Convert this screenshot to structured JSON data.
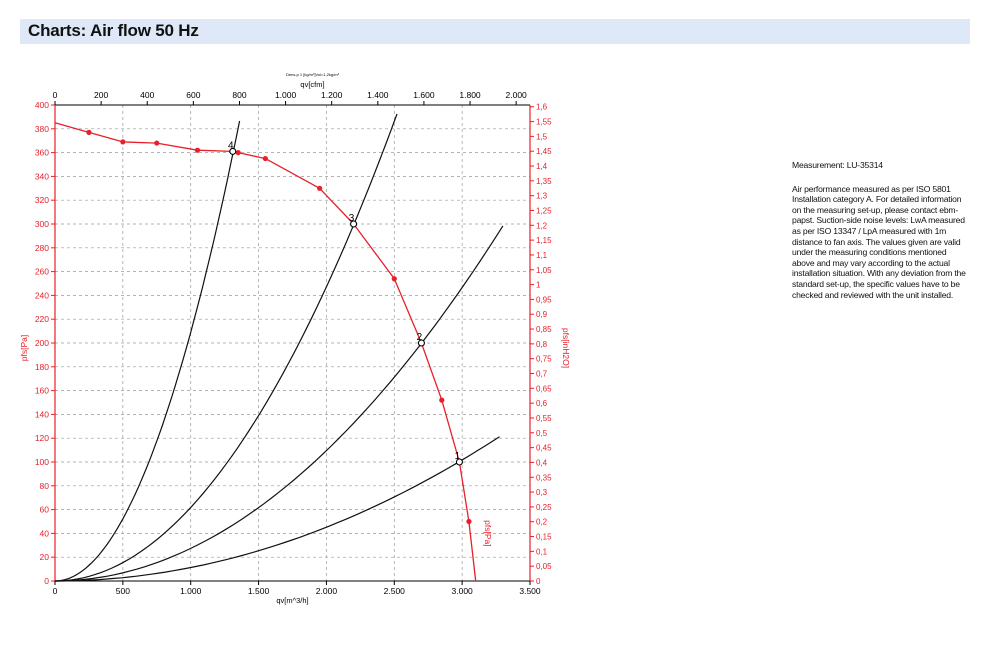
{
  "header": {
    "title": "Charts: Air flow 50 Hz"
  },
  "notes": {
    "measurement": "Measurement: LU-35314",
    "description": "Air performance measured as per ISO 5801 Installation category A. For detailed information on the measuring set-up, please contact ebm-papst. Suction-side noise levels: LwA measured as per ISO 13347 / LpA measured with 1m distance to fan axis. The values given are valid under the measuring conditions mentioned above and may vary according to the actual installation situation. With any deviation from the standard set-up, the specific values have to be checked and reviewed with the unit installed."
  },
  "colors": {
    "red": "#e8202a",
    "black": "#111111",
    "grid": "#9a9a9a",
    "header_bg": "#dfe8f7"
  },
  "chart_data": {
    "type": "line",
    "title": "",
    "subtitle": "Dens.ρ 1 [kg/m³]Vol=1,2kg/m³",
    "xlabel": "qv[m^3/h]",
    "xlabel_top": "qv[cfm]",
    "ylabel": "pfs[Pa]",
    "ylabel_right": "pfs[inH2O]",
    "curve_label": "pfs[Pa]",
    "xlim": [
      0,
      3500
    ],
    "ylim": [
      0,
      400
    ],
    "x_ticks": [
      0,
      500,
      1000,
      1500,
      2000,
      2500,
      3000,
      3500
    ],
    "x_tick_labels": [
      "0",
      "500",
      "1.000",
      "1.500",
      "2.000",
      "2.500",
      "3.000",
      "3.500"
    ],
    "x_top_ticks": [
      0,
      200,
      400,
      600,
      800,
      1000,
      1200,
      1400,
      1600,
      1800,
      2000
    ],
    "x_top_tick_labels": [
      "0",
      "200",
      "400",
      "600",
      "800",
      "1.000",
      "1.200",
      "1.400",
      "1.600",
      "1.800",
      "2.000"
    ],
    "y_ticks": [
      0,
      20,
      40,
      60,
      80,
      100,
      120,
      140,
      160,
      180,
      200,
      220,
      240,
      260,
      280,
      300,
      320,
      340,
      360,
      380,
      400
    ],
    "y_right_ticks": [
      0,
      0.05,
      0.1,
      0.15,
      0.2,
      0.25,
      0.3,
      0.35,
      0.4,
      0.45,
      0.5,
      0.55,
      0.6,
      0.65,
      0.7,
      0.75,
      0.8,
      0.85,
      0.9,
      0.95,
      1,
      1.05,
      1.1,
      1.15,
      1.2,
      1.25,
      1.3,
      1.35,
      1.4,
      1.45,
      1.5,
      1.55,
      1.6
    ],
    "y_right_tick_labels": [
      "0",
      "0,05",
      "0,1",
      "0,15",
      "0,2",
      "0,25",
      "0,3",
      "0,35",
      "0,4",
      "0,45",
      "0,5",
      "0,55",
      "0,6",
      "0,65",
      "0,7",
      "0,75",
      "0,8",
      "0,85",
      "0,9",
      "0,95",
      "1",
      "1,05",
      "1,1",
      "1,15",
      "1,2",
      "1,25",
      "1,3",
      "1,35",
      "1,4",
      "1,45",
      "1,5",
      "1,55",
      "1,6"
    ],
    "grid": true,
    "fan_curve": {
      "x": [
        0,
        250,
        500,
        750,
        1050,
        1300,
        1350,
        1550,
        1950,
        2200,
        2500,
        2700,
        2850,
        2980,
        3050,
        3100
      ],
      "y": [
        385,
        377,
        369,
        368,
        362,
        361,
        360,
        355,
        330,
        300,
        254,
        200,
        152,
        100,
        50,
        0
      ]
    },
    "fan_curve_markers": {
      "x": [
        250,
        500,
        750,
        1050,
        1350,
        1550,
        1950,
        2500,
        2850,
        3050
      ],
      "y": [
        377,
        369,
        368,
        362,
        360,
        355,
        330,
        254,
        152,
        50
      ]
    },
    "system_curves": [
      {
        "label": "1",
        "coef": 1.13e-05,
        "xmax": 3275
      },
      {
        "label": "2",
        "coef": 2.74e-05,
        "xmax": 3300
      },
      {
        "label": "3",
        "coef": 6.18e-05,
        "xmax": 2520
      },
      {
        "label": "4",
        "coef": 0.000209,
        "xmax": 1360
      }
    ],
    "operating_points": [
      {
        "label": "1",
        "x": 2980,
        "y": 100
      },
      {
        "label": "2",
        "x": 2700,
        "y": 200
      },
      {
        "label": "3",
        "x": 2200,
        "y": 300
      },
      {
        "label": "4",
        "x": 1310,
        "y": 361
      }
    ]
  }
}
